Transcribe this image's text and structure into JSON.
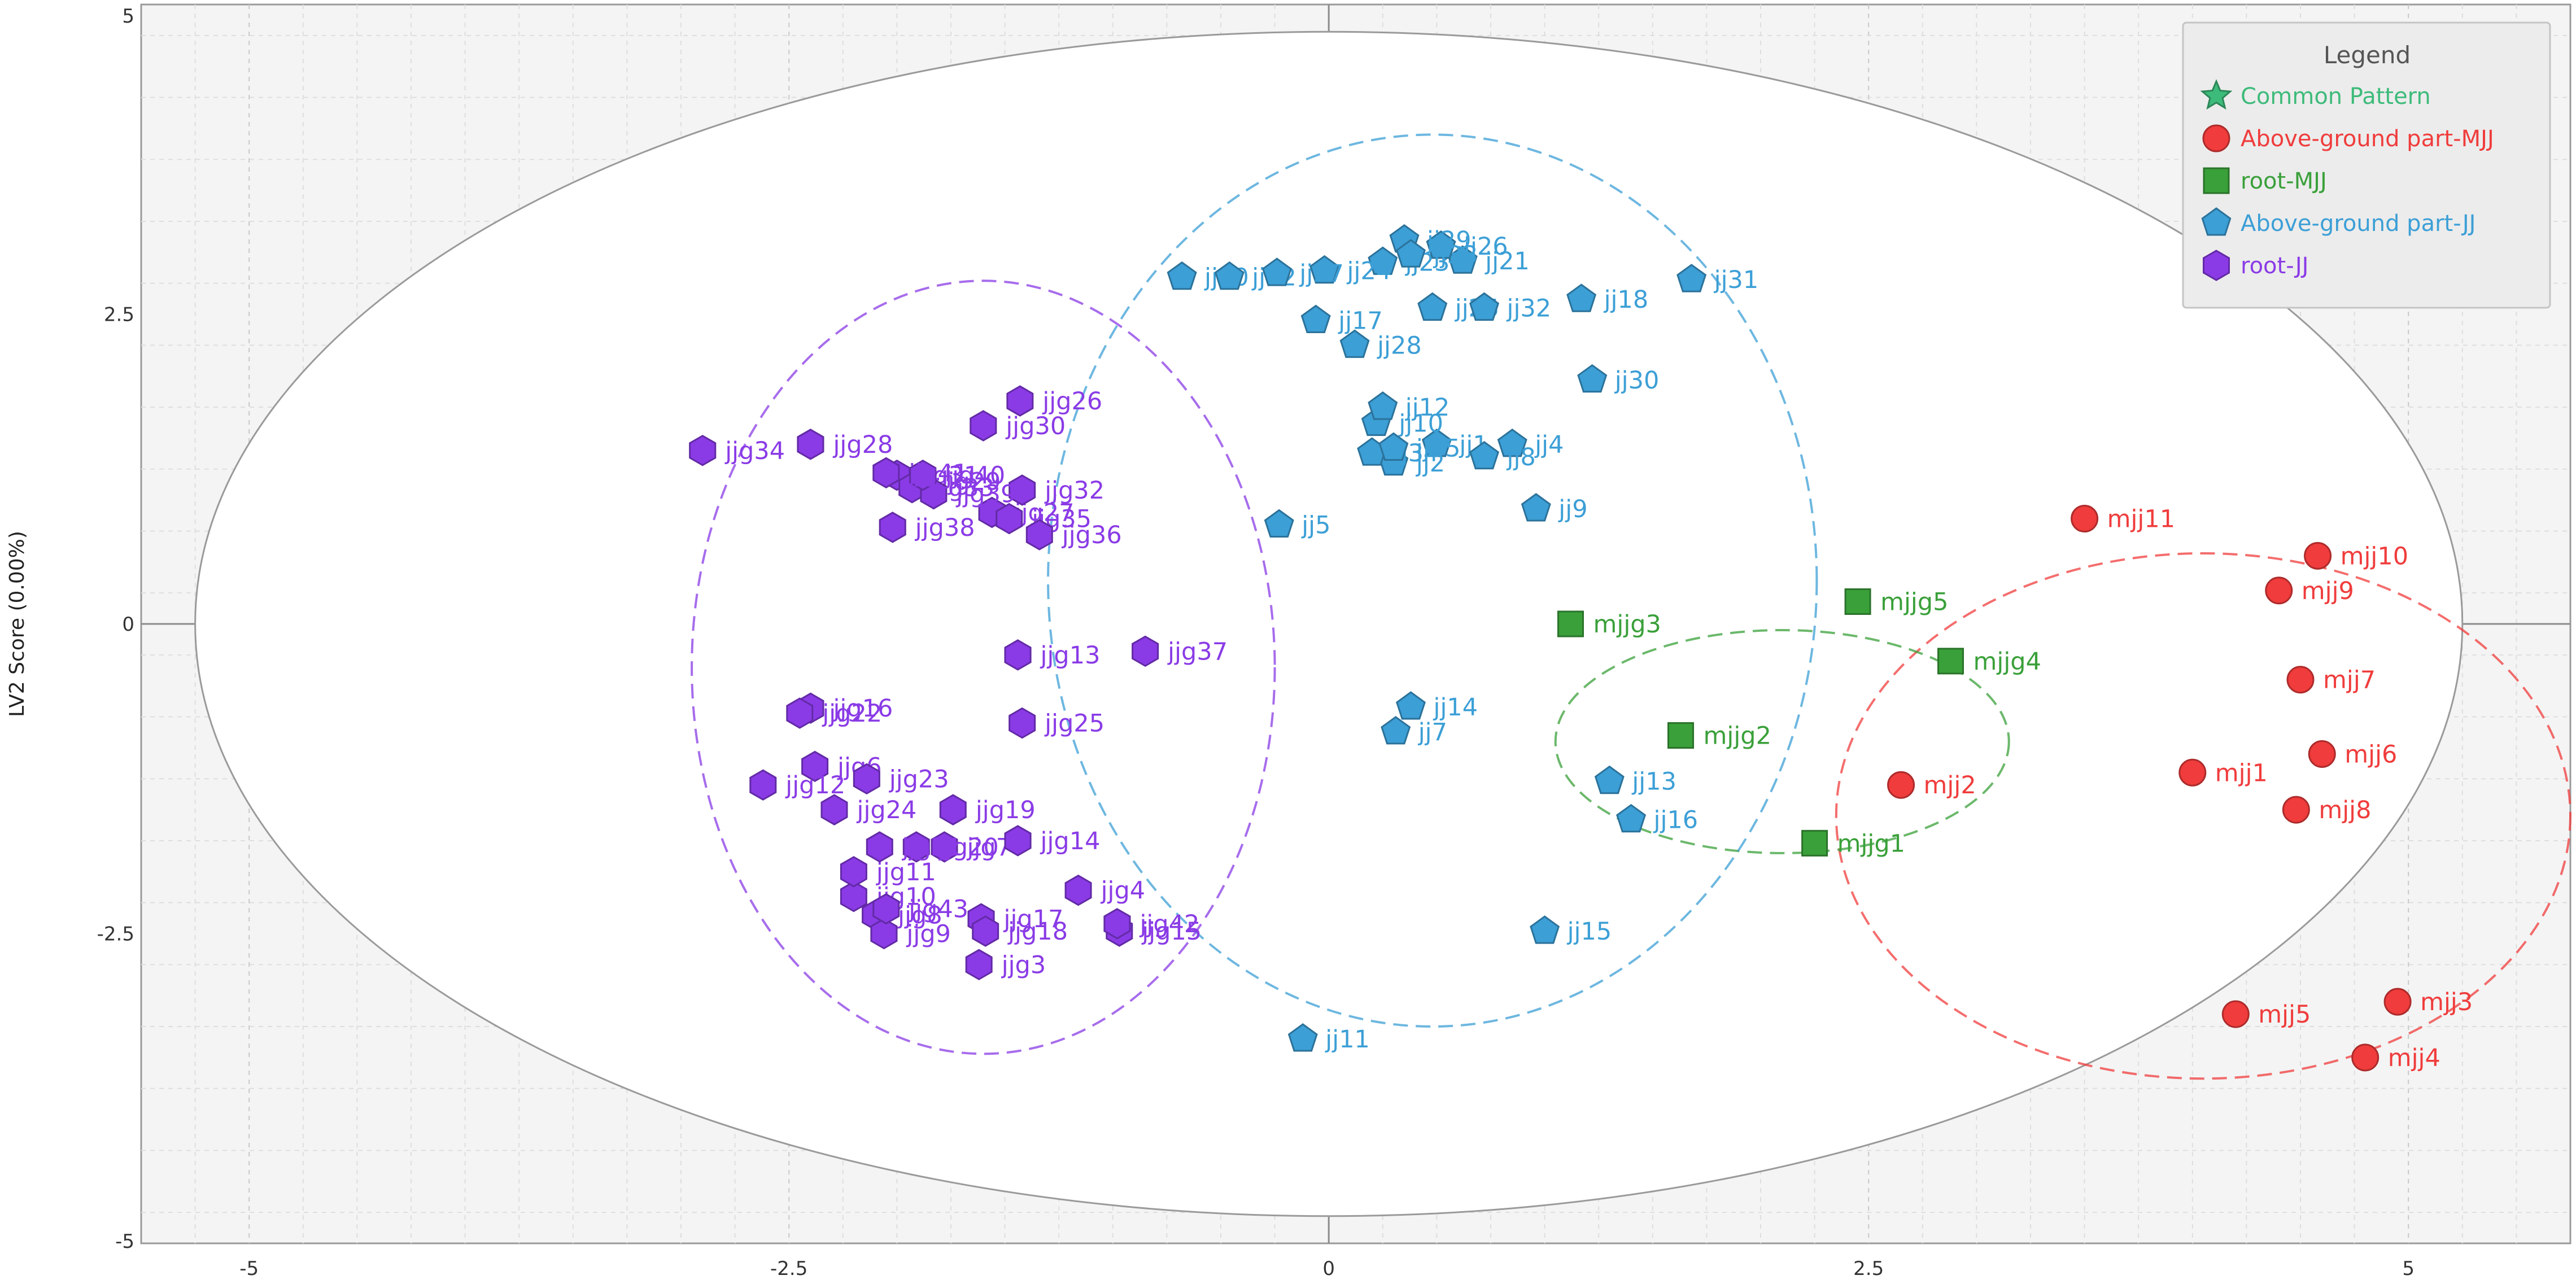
{
  "chart_data": {
    "type": "scatter",
    "title": "",
    "xlabel": "",
    "ylabel": "LV2 Score (0.00%)",
    "xlim": [
      -5.5,
      5.75
    ],
    "ylim": [
      -5,
      5
    ],
    "x_ticks": [
      -5,
      -2.5,
      0,
      2.5,
      5
    ],
    "y_ticks": [
      5,
      2.5,
      0,
      -2.5,
      -5
    ],
    "x_tick_labels": [
      "-5",
      "-2.5",
      "0",
      "2.5",
      "5"
    ],
    "y_tick_labels": [
      "5",
      "2.5",
      "0",
      "-2.5",
      "-5"
    ],
    "grid": true,
    "legend_position": "top-right",
    "legend": {
      "title": "Legend",
      "entries": [
        {
          "label": "Common Pattern",
          "marker": "star",
          "color": "#3dbb7a"
        },
        {
          "label": "Above-ground part-MJJ",
          "marker": "circle",
          "color": "#f03c3c"
        },
        {
          "label": "root-MJJ",
          "marker": "square",
          "color": "#3aa03a"
        },
        {
          "label": "Above-ground part-JJ",
          "marker": "pentagon",
          "color": "#3c9fd6"
        },
        {
          "label": "root-JJ",
          "marker": "hexagon",
          "color": "#8a3be6"
        }
      ]
    },
    "confidence_ellipse": {
      "cx": 0,
      "cy": 0,
      "rx": 5.25,
      "ry": 4.78
    },
    "groups": [
      {
        "name": "Above-ground part-MJJ",
        "marker": "circle",
        "color": "#f03c3c",
        "ellipse": {
          "cx": 4.05,
          "cy": -1.55,
          "rx": 1.7,
          "ry": 2.12
        },
        "points": [
          {
            "label": "mjj1",
            "x": 4.0,
            "y": -1.2
          },
          {
            "label": "mjj2",
            "x": 2.65,
            "y": -1.3
          },
          {
            "label": "mjj3",
            "x": 4.95,
            "y": -3.05
          },
          {
            "label": "mjj4",
            "x": 4.8,
            "y": -3.5
          },
          {
            "label": "mjj5",
            "x": 4.2,
            "y": -3.15
          },
          {
            "label": "mjj6",
            "x": 4.6,
            "y": -1.05
          },
          {
            "label": "mjj7",
            "x": 4.5,
            "y": -0.45
          },
          {
            "label": "mjj8",
            "x": 4.48,
            "y": -1.5
          },
          {
            "label": "mjj9",
            "x": 4.4,
            "y": 0.27
          },
          {
            "label": "mjj10",
            "x": 4.58,
            "y": 0.55
          },
          {
            "label": "mjj11",
            "x": 3.5,
            "y": 0.85
          }
        ]
      },
      {
        "name": "root-MJJ",
        "marker": "square",
        "color": "#3aa03a",
        "ellipse": {
          "cx": 2.1,
          "cy": -0.95,
          "rx": 1.05,
          "ry": 0.9
        },
        "points": [
          {
            "label": "mjjg1",
            "x": 2.25,
            "y": -1.77
          },
          {
            "label": "mjjg2",
            "x": 1.63,
            "y": -0.9
          },
          {
            "label": "mjjg3",
            "x": 1.12,
            "y": 0.0
          },
          {
            "label": "mjjg4",
            "x": 2.88,
            "y": -0.3
          },
          {
            "label": "mjjg5",
            "x": 2.45,
            "y": 0.18
          }
        ]
      },
      {
        "name": "Above-ground part-JJ",
        "marker": "pentagon",
        "color": "#3c9fd6",
        "ellipse": {
          "cx": 0.48,
          "cy": 0.35,
          "rx": 1.78,
          "ry": 3.6
        },
        "points": [
          {
            "label": "jj1",
            "x": 0.5,
            "y": 1.45
          },
          {
            "label": "jj2",
            "x": 0.3,
            "y": 1.3
          },
          {
            "label": "jj4",
            "x": 0.85,
            "y": 1.45
          },
          {
            "label": "jj5",
            "x": -0.23,
            "y": 0.8
          },
          {
            "label": "jj7",
            "x": 0.31,
            "y": -0.87
          },
          {
            "label": "jj8",
            "x": 0.72,
            "y": 1.35
          },
          {
            "label": "jj9",
            "x": 0.96,
            "y": 0.93
          },
          {
            "label": "jj10",
            "x": 0.22,
            "y": 1.62
          },
          {
            "label": "jj11",
            "x": -0.12,
            "y": -3.35
          },
          {
            "label": "jj12",
            "x": 0.25,
            "y": 1.75
          },
          {
            "label": "jj13",
            "x": 1.3,
            "y": -1.27
          },
          {
            "label": "jj14",
            "x": 0.38,
            "y": -0.67
          },
          {
            "label": "jj15",
            "x": 1.0,
            "y": -2.48
          },
          {
            "label": "jj16",
            "x": 1.4,
            "y": -1.58
          },
          {
            "label": "jj17",
            "x": -0.06,
            "y": 2.45
          },
          {
            "label": "jj18",
            "x": 1.17,
            "y": 2.62
          },
          {
            "label": "jj20",
            "x": -0.68,
            "y": 2.8
          },
          {
            "label": "jj21",
            "x": 0.62,
            "y": 2.93
          },
          {
            "label": "jj22",
            "x": -0.46,
            "y": 2.8
          },
          {
            "label": "jj23",
            "x": 0.25,
            "y": 2.92
          },
          {
            "label": "jj24",
            "x": -0.02,
            "y": 2.85
          },
          {
            "label": "jj25",
            "x": 0.48,
            "y": 2.55
          },
          {
            "label": "jj26",
            "x": 0.52,
            "y": 3.05
          },
          {
            "label": "jj27",
            "x": -0.24,
            "y": 2.83
          },
          {
            "label": "jj28",
            "x": 0.12,
            "y": 2.25
          },
          {
            "label": "jj29",
            "x": 0.35,
            "y": 3.1
          },
          {
            "label": "jj30",
            "x": 1.22,
            "y": 1.97
          },
          {
            "label": "jj31",
            "x": 1.68,
            "y": 2.78
          },
          {
            "label": "jj32",
            "x": 0.72,
            "y": 2.55
          },
          {
            "label": "jj33",
            "x": 0.38,
            "y": 2.98
          },
          {
            "label": "jj34",
            "x": 0.2,
            "y": 1.38
          },
          {
            "label": "jj35",
            "x": 0.3,
            "y": 1.42
          }
        ]
      },
      {
        "name": "root-JJ",
        "marker": "hexagon",
        "color": "#8a3be6",
        "ellipse": {
          "cx": -1.6,
          "cy": -0.35,
          "rx": 1.35,
          "ry": 3.12
        },
        "points": [
          {
            "label": "jjg3",
            "x": -1.62,
            "y": -2.75
          },
          {
            "label": "jjg4",
            "x": -1.16,
            "y": -2.15
          },
          {
            "label": "jjg6",
            "x": -2.38,
            "y": -1.15
          },
          {
            "label": "jjg7",
            "x": -1.78,
            "y": -1.8
          },
          {
            "label": "jjg8",
            "x": -2.1,
            "y": -2.35
          },
          {
            "label": "jjg9",
            "x": -2.06,
            "y": -2.5
          },
          {
            "label": "jjg10",
            "x": -2.2,
            "y": -2.2
          },
          {
            "label": "jjg11",
            "x": -2.2,
            "y": -2.0
          },
          {
            "label": "jjg12",
            "x": -2.62,
            "y": -1.3
          },
          {
            "label": "jjg13",
            "x": -1.44,
            "y": -0.25
          },
          {
            "label": "jjg14",
            "x": -1.44,
            "y": -1.75
          },
          {
            "label": "jjg15",
            "x": -0.97,
            "y": -2.48
          },
          {
            "label": "jjg16",
            "x": -2.4,
            "y": -0.68
          },
          {
            "label": "jjg17",
            "x": -1.61,
            "y": -2.38
          },
          {
            "label": "jjg18",
            "x": -1.59,
            "y": -2.48
          },
          {
            "label": "jjg19",
            "x": -1.74,
            "y": -1.5
          },
          {
            "label": "jjg20",
            "x": -1.91,
            "y": -1.8
          },
          {
            "label": "jjg21",
            "x": -2.08,
            "y": -1.8
          },
          {
            "label": "jjg22",
            "x": -2.45,
            "y": -0.72
          },
          {
            "label": "jjg23",
            "x": -2.14,
            "y": -1.25
          },
          {
            "label": "jjg24",
            "x": -2.29,
            "y": -1.5
          },
          {
            "label": "jjg25",
            "x": -1.42,
            "y": -0.8
          },
          {
            "label": "jjg26",
            "x": -1.43,
            "y": 1.8
          },
          {
            "label": "jjg27",
            "x": -1.56,
            "y": 0.9
          },
          {
            "label": "jjg28",
            "x": -2.4,
            "y": 1.45
          },
          {
            "label": "jjg29",
            "x": -1.9,
            "y": 1.15
          },
          {
            "label": "jjg30",
            "x": -1.6,
            "y": 1.6
          },
          {
            "label": "jjg31",
            "x": -2.0,
            "y": 1.2
          },
          {
            "label": "jjg32",
            "x": -1.42,
            "y": 1.08
          },
          {
            "label": "jjg33",
            "x": -1.93,
            "y": 1.1
          },
          {
            "label": "jjg34",
            "x": -2.9,
            "y": 1.4
          },
          {
            "label": "jjg35",
            "x": -1.48,
            "y": 0.85
          },
          {
            "label": "jjg36",
            "x": -1.34,
            "y": 0.72
          },
          {
            "label": "jjg37",
            "x": -0.85,
            "y": -0.22
          },
          {
            "label": "jjg38",
            "x": -2.02,
            "y": 0.78
          },
          {
            "label": "jjg39",
            "x": -1.83,
            "y": 1.05
          },
          {
            "label": "jjg40",
            "x": -1.88,
            "y": 1.2
          },
          {
            "label": "jjg41",
            "x": -2.05,
            "y": 1.22
          },
          {
            "label": "jjg42",
            "x": -0.98,
            "y": -2.42
          },
          {
            "label": "jjg43",
            "x": -2.05,
            "y": -2.3
          }
        ]
      }
    ]
  }
}
